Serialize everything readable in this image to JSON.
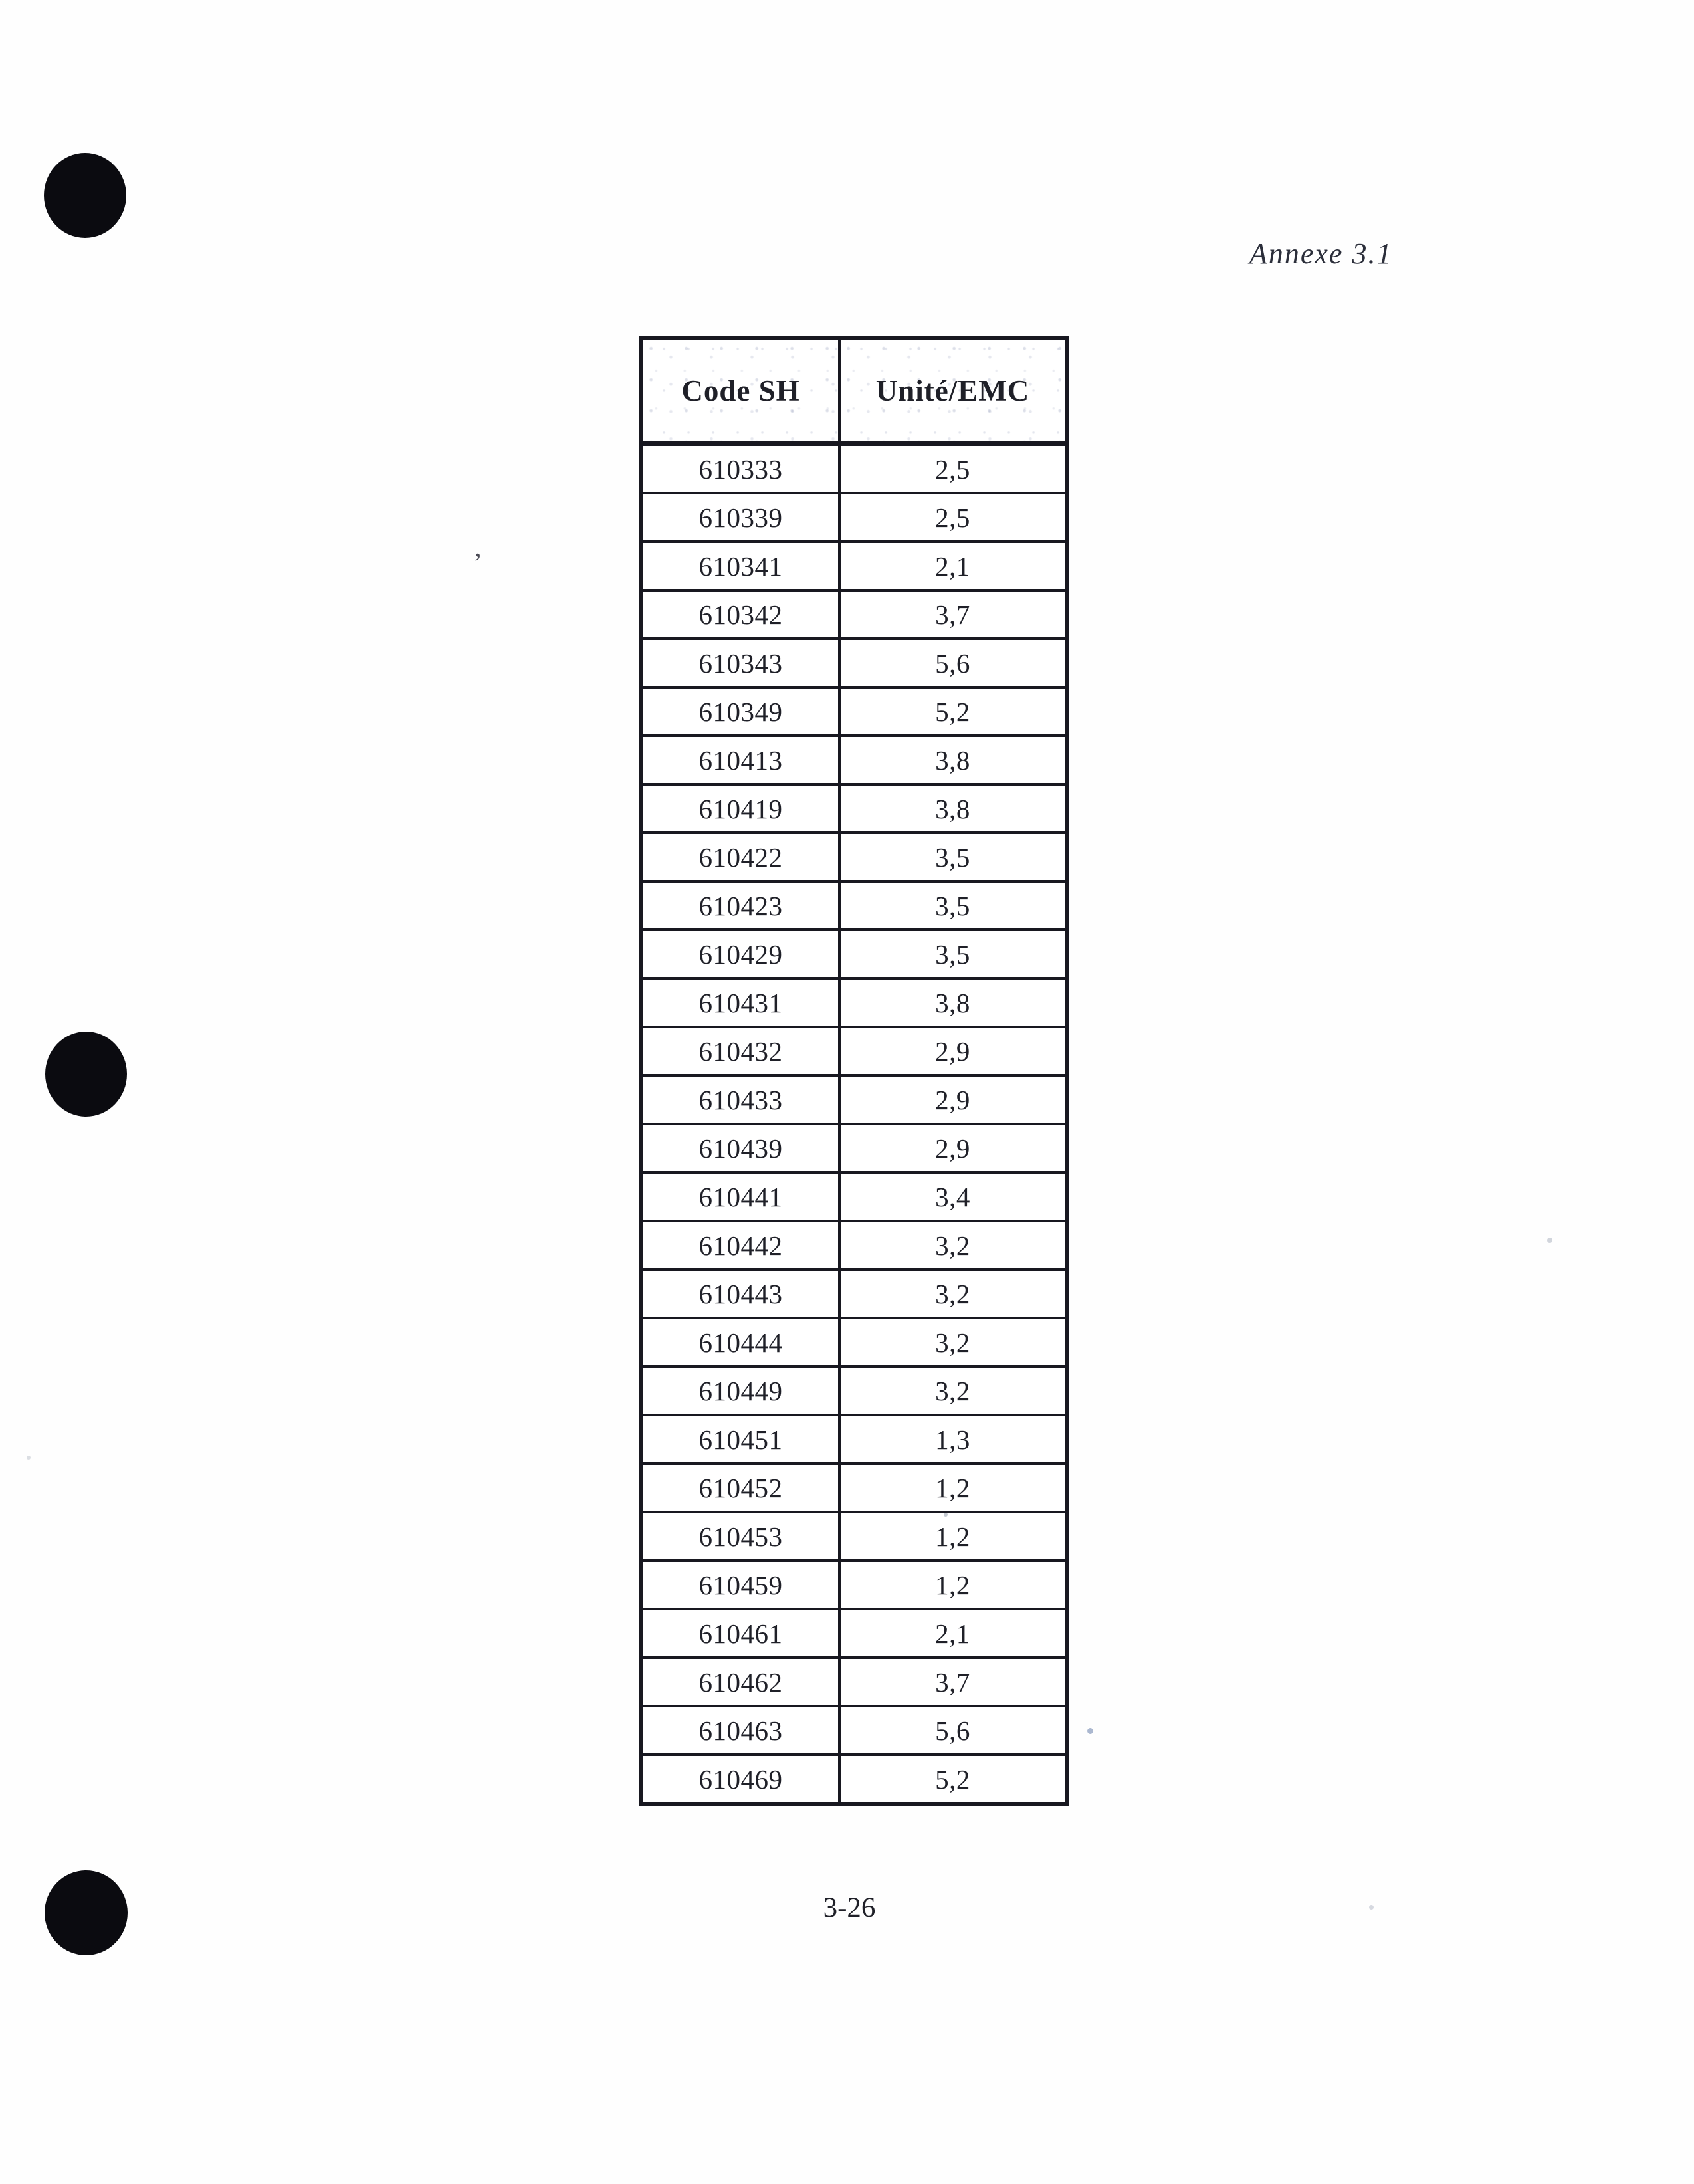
{
  "page": {
    "annexe_label": "Annexe 3.1",
    "page_number": "3-26"
  },
  "table": {
    "headers": [
      "Code SH",
      "Unité/EMC"
    ],
    "rows": [
      {
        "code": "610333",
        "value": "2,5"
      },
      {
        "code": "610339",
        "value": "2,5"
      },
      {
        "code": "610341",
        "value": "2,1"
      },
      {
        "code": "610342",
        "value": "3,7"
      },
      {
        "code": "610343",
        "value": "5,6"
      },
      {
        "code": "610349",
        "value": "5,2"
      },
      {
        "code": "610413",
        "value": "3,8"
      },
      {
        "code": "610419",
        "value": "3,8"
      },
      {
        "code": "610422",
        "value": "3,5"
      },
      {
        "code": "610423",
        "value": "3,5"
      },
      {
        "code": "610429",
        "value": "3,5"
      },
      {
        "code": "610431",
        "value": "3,8"
      },
      {
        "code": "610432",
        "value": "2,9"
      },
      {
        "code": "610433",
        "value": "2,9"
      },
      {
        "code": "610439",
        "value": "2,9"
      },
      {
        "code": "610441",
        "value": "3,4"
      },
      {
        "code": "610442",
        "value": "3,2"
      },
      {
        "code": "610443",
        "value": "3,2"
      },
      {
        "code": "610444",
        "value": "3,2"
      },
      {
        "code": "610449",
        "value": "3,2"
      },
      {
        "code": "610451",
        "value": "1,3"
      },
      {
        "code": "610452",
        "value": "1,2"
      },
      {
        "code": "610453",
        "value": "1,2"
      },
      {
        "code": "610459",
        "value": "1,2"
      },
      {
        "code": "610461",
        "value": "2,1"
      },
      {
        "code": "610462",
        "value": "3,7"
      },
      {
        "code": "610463",
        "value": "5,6"
      },
      {
        "code": "610469",
        "value": "5,2"
      }
    ]
  },
  "colors": {
    "ink": "#1f2028",
    "border": "#181820",
    "page_background": "#fefefe",
    "punch_hole": "#0b0b10"
  }
}
